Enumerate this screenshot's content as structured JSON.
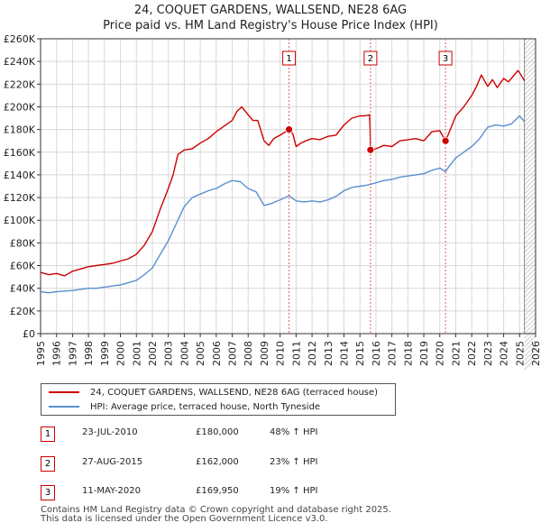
{
  "title_line1": "24, COQUET GARDENS, WALLSEND, NE28 6AG",
  "title_line2": "Price paid vs. HM Land Registry's House Price Index (HPI)",
  "chart_data": {
    "type": "line",
    "x_range": [
      1995,
      2026
    ],
    "y_range": [
      0,
      260000
    ],
    "y_ticks": [
      0,
      20000,
      40000,
      60000,
      80000,
      100000,
      120000,
      140000,
      160000,
      180000,
      200000,
      220000,
      240000,
      260000
    ],
    "y_tick_labels": [
      "£0",
      "£20K",
      "£40K",
      "£60K",
      "£80K",
      "£100K",
      "£120K",
      "£140K",
      "£160K",
      "£180K",
      "£200K",
      "£220K",
      "£240K",
      "£260K"
    ],
    "x_ticks": [
      "1995",
      "1996",
      "1997",
      "1998",
      "1999",
      "2000",
      "2001",
      "2002",
      "2003",
      "2004",
      "2005",
      "2006",
      "2007",
      "2008",
      "2009",
      "2010",
      "2011",
      "2012",
      "2013",
      "2014",
      "2015",
      "2016",
      "2017",
      "2018",
      "2019",
      "2020",
      "2021",
      "2022",
      "2023",
      "2024",
      "2025",
      "2026"
    ],
    "grid": true,
    "data_end_year": 2025.3,
    "series": [
      {
        "name": "24, COQUET GARDENS, WALLSEND, NE28 6AG (terraced house)",
        "color": "#cc0000",
        "x": [
          1995.0,
          1995.5,
          1996.0,
          1996.5,
          1997.0,
          1997.5,
          1998.0,
          1998.5,
          1999.0,
          1999.5,
          2000.0,
          2000.5,
          2001.0,
          2001.5,
          2002.0,
          2002.5,
          2003.0,
          2003.3,
          2003.6,
          2004.0,
          2004.5,
          2005.0,
          2005.5,
          2006.0,
          2006.5,
          2007.0,
          2007.3,
          2007.6,
          2008.0,
          2008.3,
          2008.6,
          2009.0,
          2009.3,
          2009.6,
          2010.0,
          2010.56,
          2010.8,
          2011.0,
          2011.3,
          2011.6,
          2012.0,
          2012.5,
          2013.0,
          2013.5,
          2014.0,
          2014.5,
          2015.0,
          2015.3,
          2015.6,
          2015.63,
          2015.66,
          2016.0,
          2016.5,
          2017.0,
          2017.5,
          2018.0,
          2018.5,
          2019.0,
          2019.5,
          2020.0,
          2020.36,
          2020.6,
          2021.0,
          2021.5,
          2022.0,
          2022.3,
          2022.6,
          2023.0,
          2023.3,
          2023.6,
          2024.0,
          2024.3,
          2024.6,
          2024.9,
          2025.0,
          2025.3
        ],
        "values": [
          54000,
          52000,
          53000,
          51000,
          55000,
          57000,
          59000,
          60000,
          61000,
          62000,
          64000,
          66000,
          70000,
          78000,
          90000,
          110000,
          128000,
          140000,
          158000,
          162000,
          163000,
          168000,
          172000,
          178000,
          183000,
          188000,
          196000,
          200000,
          193000,
          188000,
          188000,
          170000,
          166000,
          172000,
          175000,
          180000,
          176000,
          165000,
          168000,
          170000,
          172000,
          171000,
          174000,
          175000,
          184000,
          190000,
          192000,
          192000,
          193000,
          182000,
          162000,
          163000,
          166000,
          165000,
          170000,
          171000,
          172000,
          170000,
          178000,
          179000,
          169950,
          178000,
          192000,
          200000,
          210000,
          218000,
          228000,
          218000,
          224000,
          217000,
          225000,
          222000,
          227000,
          232000,
          230000,
          223000
        ]
      },
      {
        "name": "HPI: Average price, terraced house, North Tyneside",
        "color": "#5a8fd0",
        "x": [
          1995.0,
          1995.5,
          1996.0,
          1996.5,
          1997.0,
          1997.5,
          1998.0,
          1998.5,
          1999.0,
          1999.5,
          2000.0,
          2000.5,
          2001.0,
          2001.5,
          2002.0,
          2002.5,
          2003.0,
          2003.5,
          2004.0,
          2004.5,
          2005.0,
          2005.5,
          2006.0,
          2006.5,
          2007.0,
          2007.5,
          2008.0,
          2008.5,
          2009.0,
          2009.5,
          2010.0,
          2010.56,
          2011.0,
          2011.5,
          2012.0,
          2012.5,
          2013.0,
          2013.5,
          2014.0,
          2014.5,
          2015.0,
          2015.5,
          2015.66,
          2016.0,
          2016.5,
          2017.0,
          2017.5,
          2018.0,
          2018.5,
          2019.0,
          2019.5,
          2020.0,
          2020.36,
          2020.6,
          2021.0,
          2021.5,
          2022.0,
          2022.5,
          2023.0,
          2023.5,
          2024.0,
          2024.5,
          2025.0,
          2025.3
        ],
        "values": [
          37000,
          36000,
          37000,
          37500,
          38000,
          39000,
          40000,
          40000,
          41000,
          42000,
          43000,
          45000,
          47000,
          52000,
          58000,
          70000,
          82000,
          97000,
          112000,
          120000,
          123000,
          126000,
          128000,
          132000,
          135000,
          134000,
          128000,
          125000,
          113000,
          115000,
          118000,
          121600,
          117000,
          116000,
          117000,
          116000,
          118000,
          121000,
          126000,
          129000,
          130000,
          131000,
          131700,
          133000,
          135000,
          136000,
          138000,
          139000,
          140000,
          141000,
          144000,
          146000,
          142800,
          148000,
          155000,
          160000,
          165000,
          172000,
          182000,
          184000,
          183000,
          185000,
          192000,
          187000
        ]
      }
    ],
    "sales": [
      {
        "marker": "1",
        "year": 2010.56,
        "value": 180000
      },
      {
        "marker": "2",
        "year": 2015.66,
        "value": 162000
      },
      {
        "marker": "3",
        "year": 2020.36,
        "value": 169950
      }
    ]
  },
  "legend": {
    "property_label": "24, COQUET GARDENS, WALLSEND, NE28 6AG (terraced house)",
    "hpi_label": "HPI: Average price, terraced house, North Tyneside"
  },
  "sales_table": [
    {
      "marker": "1",
      "date": "23-JUL-2010",
      "price": "£180,000",
      "hpi_diff": "48% ↑ HPI"
    },
    {
      "marker": "2",
      "date": "27-AUG-2015",
      "price": "£162,000",
      "hpi_diff": "23% ↑ HPI"
    },
    {
      "marker": "3",
      "date": "11-MAY-2020",
      "price": "£169,950",
      "hpi_diff": "19% ↑ HPI"
    }
  ],
  "footer": {
    "line1": "Contains HM Land Registry data © Crown copyright and database right 2025.",
    "line2": "This data is licensed under the Open Government Licence v3.0."
  }
}
